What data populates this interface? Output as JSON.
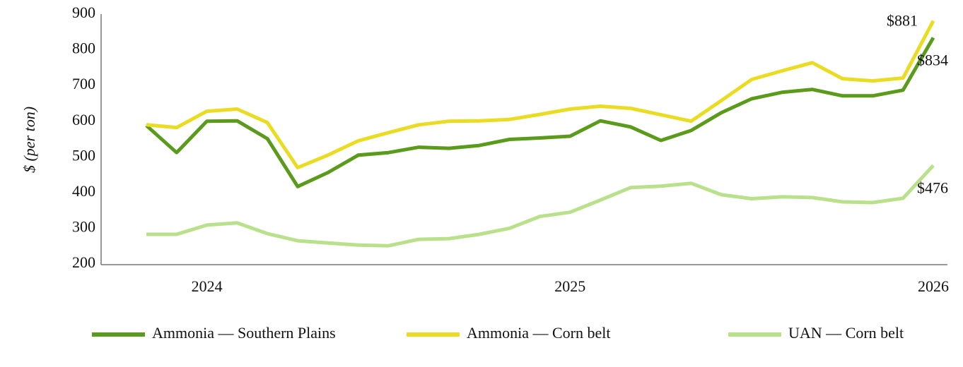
{
  "chart_data": {
    "type": "line",
    "ylabel": "$ (per ton)",
    "categories": [
      null,
      null,
      "2024",
      null,
      null,
      null,
      null,
      null,
      null,
      null,
      null,
      null,
      null,
      null,
      "2025",
      null,
      null,
      null,
      null,
      null,
      null,
      null,
      null,
      null,
      null,
      null,
      "2026"
    ],
    "ylim": [
      200,
      900
    ],
    "yticks": [
      200,
      300,
      400,
      500,
      600,
      700,
      800,
      900
    ],
    "grid": false,
    "legend": "bottom",
    "series": [
      {
        "name": "Ammonia — Southern Plains",
        "color": "#5b9b1b",
        "values": [
          588,
          512,
          600,
          601,
          551,
          417,
          456,
          505,
          512,
          527,
          524,
          532,
          549,
          553,
          558,
          601,
          584,
          546,
          574,
          624,
          663,
          681,
          689,
          671,
          671,
          687,
          834
        ],
        "value_labels": [
          null,
          null,
          null,
          null,
          null,
          null,
          null,
          null,
          null,
          null,
          null,
          null,
          null,
          null,
          null,
          null,
          null,
          null,
          null,
          null,
          null,
          null,
          null,
          null,
          null,
          null,
          "$834"
        ]
      },
      {
        "name": "Ammonia — Corn belt",
        "color": "#e9dc23",
        "values": [
          590,
          582,
          628,
          634,
          596,
          470,
          505,
          545,
          568,
          590,
          600,
          601,
          605,
          619,
          634,
          642,
          636,
          618,
          600,
          658,
          717,
          741,
          764,
          719,
          713,
          721,
          881
        ],
        "value_labels": [
          null,
          null,
          null,
          null,
          null,
          null,
          null,
          null,
          null,
          null,
          null,
          null,
          null,
          null,
          null,
          null,
          null,
          null,
          null,
          null,
          null,
          null,
          null,
          null,
          null,
          null,
          "$881"
        ]
      },
      {
        "name": "UAN — Corn belt",
        "color": "#b9e18b",
        "values": [
          283,
          283,
          309,
          315,
          285,
          265,
          259,
          253,
          251,
          269,
          271,
          283,
          300,
          333,
          345,
          379,
          414,
          418,
          426,
          394,
          383,
          388,
          386,
          374,
          372,
          384,
          476
        ],
        "value_labels": [
          null,
          null,
          null,
          null,
          null,
          null,
          null,
          null,
          null,
          null,
          null,
          null,
          null,
          null,
          null,
          null,
          null,
          null,
          null,
          null,
          null,
          null,
          null,
          null,
          null,
          null,
          "$476"
        ]
      }
    ]
  }
}
